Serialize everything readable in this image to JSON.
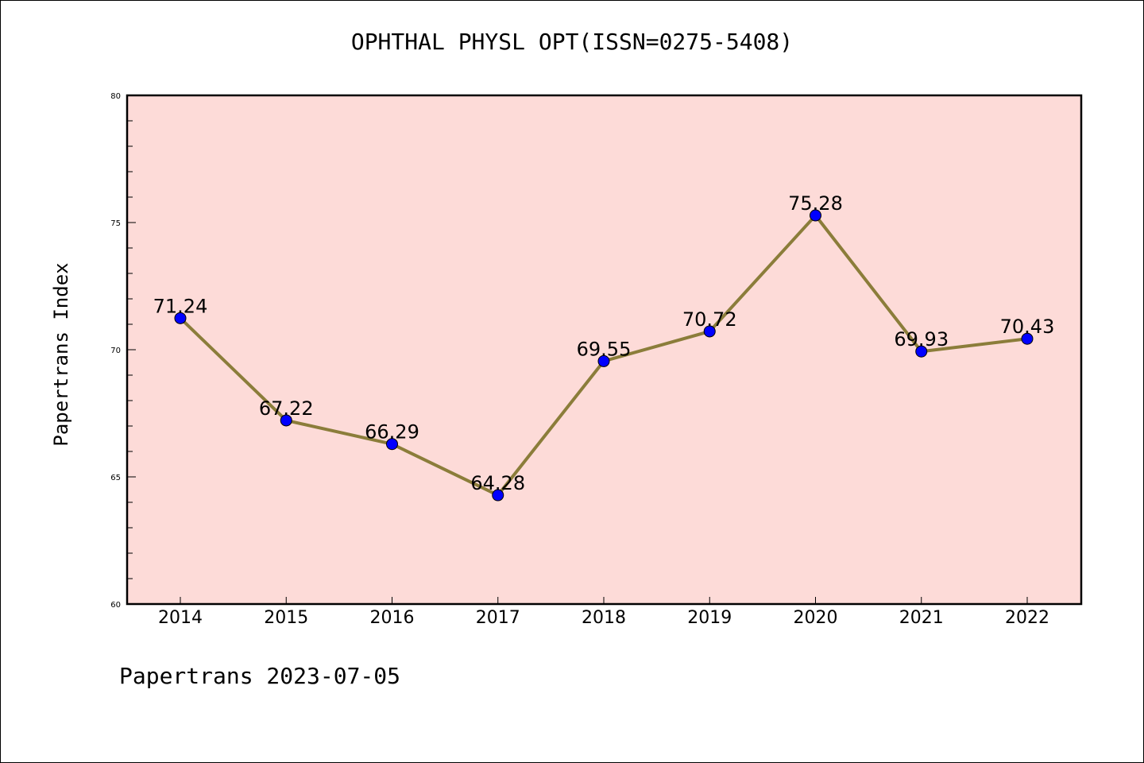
{
  "chart_data": {
    "type": "line",
    "title": "OPHTHAL PHYSL OPT(ISSN=0275-5408)",
    "xlabel": "",
    "ylabel": "Papertrans Index",
    "categories": [
      "2014",
      "2015",
      "2016",
      "2017",
      "2018",
      "2019",
      "2020",
      "2021",
      "2022"
    ],
    "series": [
      {
        "values": [
          71.24,
          67.22,
          66.29,
          64.28,
          69.55,
          70.72,
          75.28,
          69.93,
          70.43
        ],
        "data_labels": [
          "71.24",
          "67.22",
          "66.29",
          "64.28",
          "69.55",
          "70.72",
          "75.28",
          "69.93",
          "70.43"
        ]
      }
    ],
    "ylim": [
      60,
      80
    ],
    "y_ticks": [
      "60",
      "65",
      "70",
      "75",
      "80"
    ],
    "grid": false,
    "colors": {
      "plot_background": "#fddbd8",
      "line": "#8b7d3a",
      "marker": "#0000ff"
    }
  },
  "footer": {
    "note": "Papertrans 2023-07-05"
  }
}
